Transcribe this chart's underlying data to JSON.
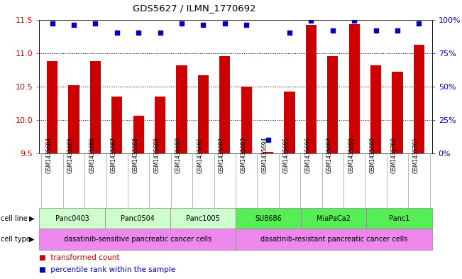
{
  "title": "GDS5627 / ILMN_1770692",
  "samples": [
    "GSM1435684",
    "GSM1435685",
    "GSM1435686",
    "GSM1435687",
    "GSM1435688",
    "GSM1435689",
    "GSM1435690",
    "GSM1435691",
    "GSM1435692",
    "GSM1435693",
    "GSM1435694",
    "GSM1435695",
    "GSM1435696",
    "GSM1435697",
    "GSM1435698",
    "GSM1435699",
    "GSM1435700",
    "GSM1435701"
  ],
  "bar_values": [
    10.88,
    10.52,
    10.88,
    10.35,
    10.06,
    10.35,
    10.82,
    10.67,
    10.95,
    10.5,
    9.52,
    10.42,
    11.42,
    10.95,
    11.43,
    10.82,
    10.72,
    11.12
  ],
  "percentile_values": [
    97,
    96,
    97,
    90,
    90,
    90,
    97,
    96,
    97,
    96,
    10,
    90,
    99,
    92,
    99,
    92,
    92,
    97
  ],
  "ylim_left": [
    9.5,
    11.5
  ],
  "ylim_right": [
    0,
    100
  ],
  "yticks_left": [
    9.5,
    10.0,
    10.5,
    11.0,
    11.5
  ],
  "yticks_right": [
    0,
    25,
    50,
    75,
    100
  ],
  "ytick_labels_right": [
    "0%",
    "25%",
    "50%",
    "75%",
    "100%"
  ],
  "bar_color": "#cc0000",
  "dot_color": "#0000bb",
  "grid_color": "#000000",
  "bar_bottom": 9.5,
  "cell_lines": [
    {
      "name": "Panc0403",
      "start": 0,
      "end": 3,
      "color": "#ccffcc"
    },
    {
      "name": "Panc0504",
      "start": 3,
      "end": 6,
      "color": "#ccffcc"
    },
    {
      "name": "Panc1005",
      "start": 6,
      "end": 9,
      "color": "#ccffcc"
    },
    {
      "name": "SU8686",
      "start": 9,
      "end": 12,
      "color": "#55ee55"
    },
    {
      "name": "MiaPaCa2",
      "start": 12,
      "end": 15,
      "color": "#55ee55"
    },
    {
      "name": "Panc1",
      "start": 15,
      "end": 18,
      "color": "#55ee55"
    }
  ],
  "cell_types": [
    {
      "name": "dasatinib-sensitive pancreatic cancer cells",
      "start": 0,
      "end": 9,
      "color": "#ee88ee"
    },
    {
      "name": "dasatinib-resistant pancreatic cancer cells",
      "start": 9,
      "end": 18,
      "color": "#ee88ee"
    }
  ],
  "left_label_color": "#cc0000",
  "right_label_color": "#0000bb",
  "plot_bg": "#ffffff",
  "tick_area_bg": "#cccccc",
  "figure_bg": "#ffffff"
}
